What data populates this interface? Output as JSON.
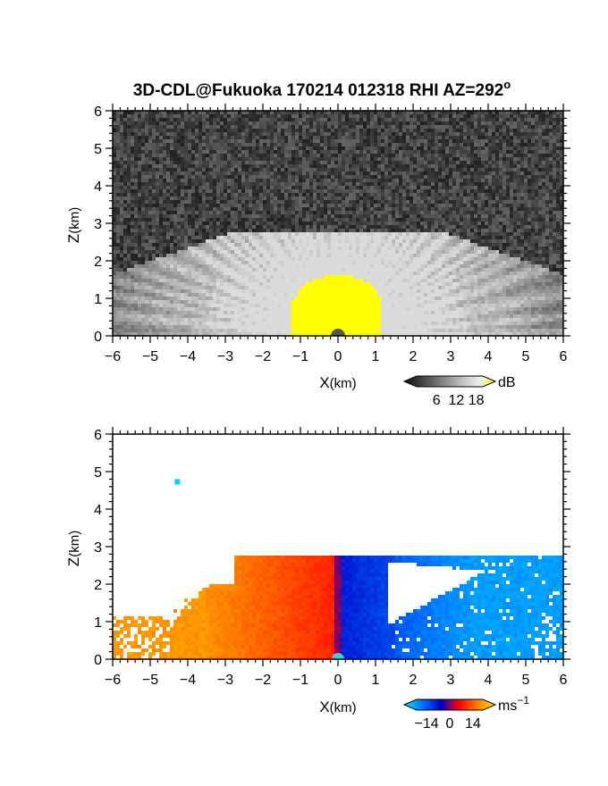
{
  "title": {
    "main": "3D-CDL@Fukuoka 170214 012318 RHI AZ=292",
    "superscript": "o"
  },
  "chart_data": [
    {
      "type": "heatmap",
      "xlabel_main": "X",
      "xlabel_unit": "(km)",
      "ylabel_main": "Z",
      "ylabel_unit": "(km)",
      "xlim": [
        -6,
        6
      ],
      "ylim": [
        0,
        6
      ],
      "xticks": [
        "-6",
        "-5",
        "-4",
        "-3",
        "-2",
        "-1",
        "0",
        "1",
        "2",
        "3",
        "4",
        "5",
        "6"
      ],
      "yticks": [
        "0",
        "1",
        "2",
        "3",
        "4",
        "5",
        "6"
      ],
      "colorbar": {
        "unit": "dB",
        "ticks": [
          "6",
          "12",
          "18"
        ],
        "tick_values": [
          6,
          12,
          18
        ],
        "range": [
          0,
          20
        ],
        "colors": [
          "#101010",
          "#3a3a3a",
          "#6a6a6a",
          "#9a9a9a",
          "#c8c8c8",
          "#eeeeee",
          "#ffff00"
        ]
      },
      "echo_top_km": 2.8,
      "saturated_core": {
        "x_range": [
          -1.2,
          1.1
        ],
        "top_km": 1.6,
        "color": "#ffff00"
      }
    },
    {
      "type": "heatmap",
      "xlabel_main": "X",
      "xlabel_unit": "(km)",
      "ylabel_main": "Z",
      "ylabel_unit": "(km)",
      "xlim": [
        -6,
        6
      ],
      "ylim": [
        0,
        6
      ],
      "xticks": [
        "-6",
        "-5",
        "-4",
        "-3",
        "-2",
        "-1",
        "0",
        "1",
        "2",
        "3",
        "4",
        "5",
        "6"
      ],
      "yticks": [
        "0",
        "1",
        "2",
        "3",
        "4",
        "5",
        "6"
      ],
      "colorbar": {
        "unit_base": "ms",
        "unit_exp": "−1",
        "ticks": [
          "−14",
          "0",
          "14"
        ],
        "tick_values": [
          -14,
          0,
          14
        ],
        "range": [
          -20,
          20
        ],
        "colors": [
          "#00e5ff",
          "#0072ff",
          "#0000c8",
          "#ff0000",
          "#ff7a00",
          "#ffee00"
        ]
      },
      "echo_top_km": 2.8
    }
  ]
}
